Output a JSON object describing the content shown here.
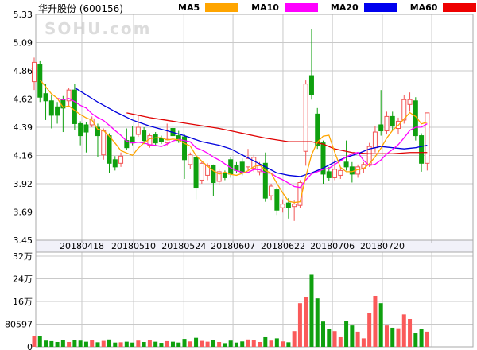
{
  "header": {
    "title": "华升股份 (600156)",
    "legend": [
      {
        "label": "MA5",
        "color": "#FFA500"
      },
      {
        "label": "MA10",
        "color": "#FF00FF"
      },
      {
        "label": "MA20",
        "color": "#0000EE"
      },
      {
        "label": "MA60",
        "color": "#EE0000"
      }
    ]
  },
  "watermark": "SOHU.com",
  "chart_data": {
    "type": "candlestick+volume",
    "title": "华升股份 (600156)",
    "price_axis": {
      "ticks": [
        "5.33",
        "5.09",
        "4.86",
        "4.62",
        "4.39",
        "4.16",
        "3.92",
        "3.69",
        "3.45"
      ],
      "max": 5.33,
      "min": 3.45
    },
    "volume_axis": {
      "ticks": [
        "32万",
        "24万",
        "16万",
        "80597",
        "0"
      ],
      "top_gridline_value_wan": 32.2388
    },
    "x_axis": {
      "date_labels": [
        "20180418",
        "20180510",
        "20180524",
        "20180607",
        "20180622",
        "20180706",
        "20180720"
      ],
      "gridline_indices": [
        8.25,
        17.2,
        25.9,
        34.4,
        43.05,
        51.6,
        60.25,
        68.78
      ]
    },
    "legend_series": [
      "MA5",
      "MA10",
      "MA20",
      "MA60"
    ],
    "candles_ohlc": [
      [
        4.77,
        4.97,
        4.7,
        4.93
      ],
      [
        4.91,
        4.94,
        4.6,
        4.64
      ],
      [
        4.67,
        4.75,
        4.45,
        4.61
      ],
      [
        4.61,
        4.66,
        4.38,
        4.49
      ],
      [
        4.56,
        4.6,
        4.42,
        4.49
      ],
      [
        4.62,
        4.65,
        4.35,
        4.55
      ],
      [
        4.61,
        4.72,
        4.56,
        4.7
      ],
      [
        4.7,
        4.75,
        4.37,
        4.42
      ],
      [
        4.42,
        4.44,
        4.24,
        4.32
      ],
      [
        4.41,
        4.43,
        4.18,
        4.35
      ],
      [
        4.41,
        4.48,
        4.39,
        4.46
      ],
      [
        4.39,
        4.42,
        4.14,
        4.32
      ],
      [
        4.16,
        4.38,
        4.12,
        4.36
      ],
      [
        4.32,
        4.34,
        4.01,
        4.09
      ],
      [
        4.12,
        4.15,
        4.03,
        4.06
      ],
      [
        4.09,
        4.18,
        4.06,
        4.15
      ],
      [
        4.28,
        4.38,
        4.2,
        4.22
      ],
      [
        4.31,
        4.4,
        4.24,
        4.26
      ],
      [
        4.33,
        4.49,
        4.31,
        4.39
      ],
      [
        4.36,
        4.39,
        4.25,
        4.28
      ],
      [
        4.24,
        4.34,
        4.22,
        4.32
      ],
      [
        4.33,
        4.35,
        4.24,
        4.26
      ],
      [
        4.3,
        4.32,
        4.25,
        4.27
      ],
      [
        4.26,
        4.42,
        4.24,
        4.29
      ],
      [
        4.38,
        4.41,
        4.29,
        4.32
      ],
      [
        4.32,
        4.36,
        4.26,
        4.28
      ],
      [
        4.31,
        4.33,
        3.96,
        4.12
      ],
      [
        4.08,
        4.18,
        4.04,
        4.16
      ],
      [
        4.14,
        4.15,
        3.79,
        3.89
      ],
      [
        3.95,
        4.11,
        3.92,
        4.09
      ],
      [
        3.99,
        4.09,
        3.95,
        4.07
      ],
      [
        4.07,
        4.08,
        3.82,
        3.93
      ],
      [
        3.94,
        4.04,
        3.91,
        4.02
      ],
      [
        4.01,
        4.03,
        3.95,
        3.97
      ],
      [
        4.12,
        4.14,
        3.97,
        4.0
      ],
      [
        4.07,
        4.1,
        4.01,
        4.03
      ],
      [
        4.1,
        4.13,
        3.99,
        4.01
      ],
      [
        4.06,
        4.21,
        4.03,
        4.13
      ],
      [
        4.05,
        4.16,
        4.02,
        4.14
      ],
      [
        4.02,
        4.1,
        3.99,
        4.07
      ],
      [
        4.09,
        4.18,
        3.77,
        3.8
      ],
      [
        3.82,
        3.92,
        3.78,
        3.9
      ],
      [
        3.87,
        3.89,
        3.66,
        3.7
      ],
      [
        3.72,
        3.79,
        3.68,
        3.75
      ],
      [
        3.76,
        3.8,
        3.63,
        3.72
      ],
      [
        3.73,
        3.78,
        3.61,
        3.75
      ],
      [
        3.74,
        3.95,
        3.72,
        3.93
      ],
      [
        4.19,
        4.78,
        4.07,
        4.75
      ],
      [
        4.82,
        5.21,
        4.62,
        4.66
      ],
      [
        4.5,
        4.55,
        4.21,
        4.24
      ],
      [
        4.26,
        4.28,
        3.92,
        4.0
      ],
      [
        4.02,
        4.06,
        3.94,
        3.97
      ],
      [
        3.97,
        4.12,
        3.95,
        4.04
      ],
      [
        3.99,
        4.06,
        3.96,
        4.03
      ],
      [
        4.1,
        4.28,
        4.03,
        4.06
      ],
      [
        4.06,
        4.1,
        3.93,
        4.0
      ],
      [
        4.0,
        4.08,
        3.97,
        4.06
      ],
      [
        4.05,
        4.1,
        4.01,
        4.08
      ],
      [
        4.08,
        4.26,
        4.06,
        4.23
      ],
      [
        4.22,
        4.4,
        4.18,
        4.35
      ],
      [
        4.41,
        4.7,
        4.32,
        4.36
      ],
      [
        4.36,
        4.52,
        4.33,
        4.48
      ],
      [
        4.48,
        4.52,
        4.36,
        4.4
      ],
      [
        4.38,
        4.47,
        4.33,
        4.44
      ],
      [
        4.45,
        4.66,
        4.42,
        4.62
      ],
      [
        4.58,
        4.68,
        4.52,
        4.62
      ],
      [
        4.61,
        4.64,
        4.28,
        4.32
      ],
      [
        4.32,
        4.34,
        4.02,
        4.09
      ],
      [
        4.09,
        4.51,
        4.03,
        4.51
      ]
    ],
    "volumes_wan": [
      3.7,
      3.9,
      2.2,
      2.0,
      1.7,
      2.4,
      1.7,
      2.3,
      2.2,
      1.8,
      2.5,
      1.6,
      2.1,
      2.6,
      1.5,
      1.6,
      1.8,
      1.5,
      2.2,
      1.7,
      2.4,
      1.8,
      1.4,
      2.0,
      1.8,
      1.5,
      2.8,
      1.9,
      3.2,
      2.1,
      1.8,
      2.5,
      1.7,
      1.3,
      2.2,
      1.5,
      1.9,
      2.6,
      2.3,
      1.7,
      3.4,
      2.2,
      3.0,
      1.9,
      1.6,
      5.6,
      15.5,
      17.7,
      25.6,
      17.2,
      9.0,
      6.5,
      5.6,
      3.4,
      9.3,
      7.6,
      5.4,
      3.0,
      12.1,
      18.1,
      15.5,
      7.6,
      6.8,
      6.6,
      11.5,
      9.9,
      4.8,
      6.5,
      5.4
    ],
    "ma20_anchors": [
      [
        7,
        4.72
      ],
      [
        11,
        4.6
      ],
      [
        14,
        4.52
      ],
      [
        17,
        4.45
      ],
      [
        20,
        4.4
      ],
      [
        23,
        4.36
      ],
      [
        26,
        4.32
      ],
      [
        29,
        4.27
      ],
      [
        32,
        4.24
      ],
      [
        34,
        4.21
      ],
      [
        36,
        4.16
      ],
      [
        38,
        4.11
      ],
      [
        40,
        4.06
      ],
      [
        42,
        4.01
      ],
      [
        44,
        3.99
      ],
      [
        46,
        3.98
      ],
      [
        48,
        4.01
      ],
      [
        50,
        4.05
      ],
      [
        52,
        4.1
      ],
      [
        54,
        4.14
      ],
      [
        56,
        4.17
      ],
      [
        58,
        4.21
      ],
      [
        60,
        4.23
      ],
      [
        62,
        4.22
      ],
      [
        64,
        4.21
      ],
      [
        66,
        4.22
      ],
      [
        68,
        4.24
      ]
    ],
    "ma60_anchors": [
      [
        16,
        4.51
      ],
      [
        20,
        4.47
      ],
      [
        24,
        4.44
      ],
      [
        28,
        4.41
      ],
      [
        32,
        4.38
      ],
      [
        36,
        4.34
      ],
      [
        40,
        4.3
      ],
      [
        44,
        4.27
      ],
      [
        48,
        4.27
      ],
      [
        50,
        4.25
      ],
      [
        52,
        4.21
      ],
      [
        55,
        4.18
      ],
      [
        58,
        4.17
      ],
      [
        62,
        4.17
      ],
      [
        65,
        4.18
      ],
      [
        68,
        4.18
      ]
    ],
    "colors": {
      "up": "#F25555",
      "up_fill": "#FFFFFF",
      "down": "#0FA00F",
      "vol_up": "#FA5A5A",
      "vol_down": "#0FA00F",
      "ma5": "#FFA500",
      "ma10": "#FF00FF",
      "ma20": "#0000DD",
      "ma60": "#E00000",
      "grid": "#C9C9C9",
      "border": "#A9A9A9",
      "strip_bg": "#F1F1F9",
      "watermark": "#DCDCDC"
    }
  }
}
